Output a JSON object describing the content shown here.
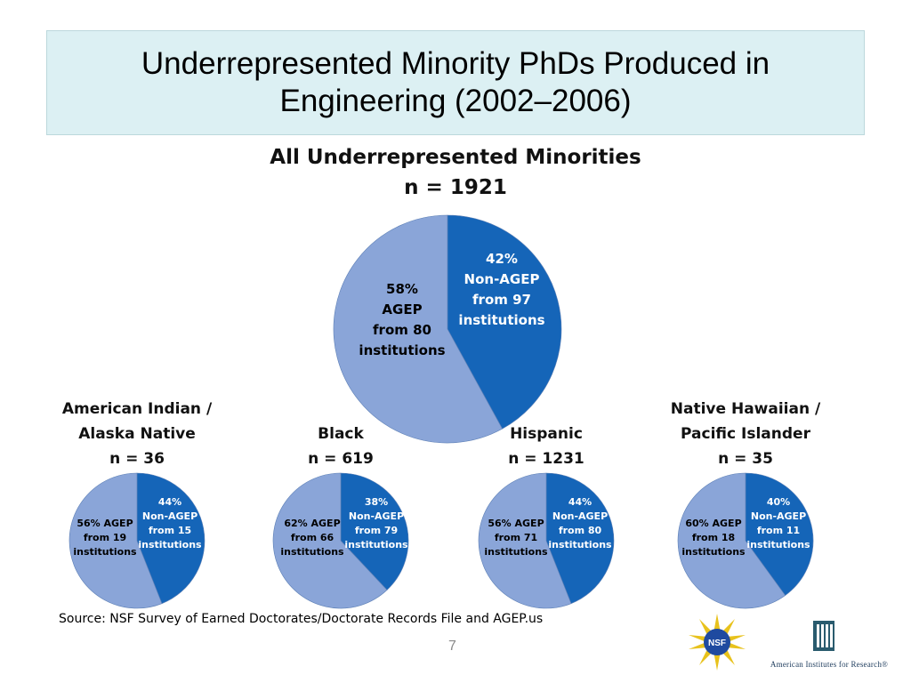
{
  "slide": {
    "title_line1": "Underrepresented Minority PhDs Produced in",
    "title_line2": "Engineering (2002–2006)",
    "source": "Source:  NSF Survey of Earned Doctorates/Doctorate Records File and AGEP.us",
    "page_number": "7",
    "logos": [
      "NSF",
      "American Institutes for Research®"
    ],
    "air_logo_text": "American Institutes for Research®",
    "colors": {
      "agep": "#8aa5d8",
      "non_agep": "#1565b8",
      "title_bg": "#dcf0f3"
    }
  },
  "chart_data": [
    {
      "type": "pie",
      "title": "All Underrepresented Minorities",
      "subtitle": "n = 1921",
      "slices": [
        {
          "label_lines": [
            "42%",
            "Non-AGEP",
            "from 97",
            "institutions"
          ],
          "value": 42
        },
        {
          "label_lines": [
            "58%",
            "AGEP",
            "from 80",
            "institutions"
          ],
          "value": 58
        }
      ]
    },
    {
      "type": "pie",
      "title_lines": [
        "American Indian /",
        "Alaska Native"
      ],
      "subtitle": "n = 36",
      "slices": [
        {
          "label_lines": [
            "44%",
            "Non-AGEP",
            "from 15",
            "institutions"
          ],
          "value": 44
        },
        {
          "label_lines": [
            "56% AGEP",
            "from 19",
            "institutions"
          ],
          "value": 56
        }
      ]
    },
    {
      "type": "pie",
      "title_lines": [
        "Black"
      ],
      "subtitle": "n = 619",
      "slices": [
        {
          "label_lines": [
            "38%",
            "Non-AGEP",
            "from 79",
            "institutions"
          ],
          "value": 38
        },
        {
          "label_lines": [
            "62% AGEP",
            "from 66",
            "institutions"
          ],
          "value": 62
        }
      ]
    },
    {
      "type": "pie",
      "title_lines": [
        "Hispanic"
      ],
      "subtitle": "n = 1231",
      "slices": [
        {
          "label_lines": [
            "44%",
            "Non-AGEP",
            "from 80",
            "institutions"
          ],
          "value": 44
        },
        {
          "label_lines": [
            "56% AGEP",
            "from 71",
            "institutions"
          ],
          "value": 56
        }
      ]
    },
    {
      "type": "pie",
      "title_lines": [
        "Native Hawaiian /",
        "Pacific Islander"
      ],
      "subtitle": "n = 35",
      "slices": [
        {
          "label_lines": [
            "40%",
            "Non-AGEP",
            "from 11",
            "institutions"
          ],
          "value": 40
        },
        {
          "label_lines": [
            "60% AGEP",
            "from 18",
            "institutions"
          ],
          "value": 60
        }
      ]
    }
  ]
}
